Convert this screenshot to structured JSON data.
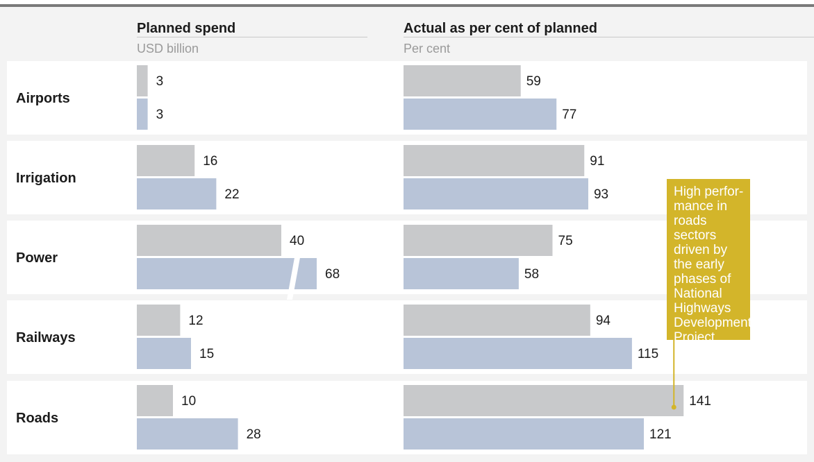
{
  "headers": {
    "planned_title": "Planned spend",
    "planned_unit": "USD billion",
    "actual_title": "Actual as per cent of planned",
    "actual_unit": "Per cent"
  },
  "annotation": "High perfor-mance in roads sectors driven by the early phases of National Highways Development Project",
  "colors": {
    "background": "#f3f3f3",
    "row_band": "#ffffff",
    "series_1": "#c8c9cb",
    "series_2": "#b8c4d8",
    "annotation": "#d3b52a"
  },
  "chart_data": [
    {
      "type": "bar",
      "orientation": "horizontal",
      "title": "Planned spend",
      "ylabel": "USD billion",
      "categories": [
        "Airports",
        "Irrigation",
        "Power",
        "Railways",
        "Roads"
      ],
      "series": [
        {
          "values": [
            3,
            16,
            40,
            12,
            10
          ]
        },
        {
          "values": [
            3,
            22,
            68,
            15,
            28
          ]
        }
      ],
      "axis_break": "Power bar 68 shown with a scale break"
    },
    {
      "type": "bar",
      "orientation": "horizontal",
      "title": "Actual as per cent of planned",
      "ylabel": "Per cent",
      "categories": [
        "Airports",
        "Irrigation",
        "Power",
        "Railways",
        "Roads"
      ],
      "series": [
        {
          "values": [
            59,
            91,
            75,
            94,
            141
          ]
        },
        {
          "values": [
            77,
            93,
            58,
            115,
            121
          ]
        }
      ]
    }
  ]
}
